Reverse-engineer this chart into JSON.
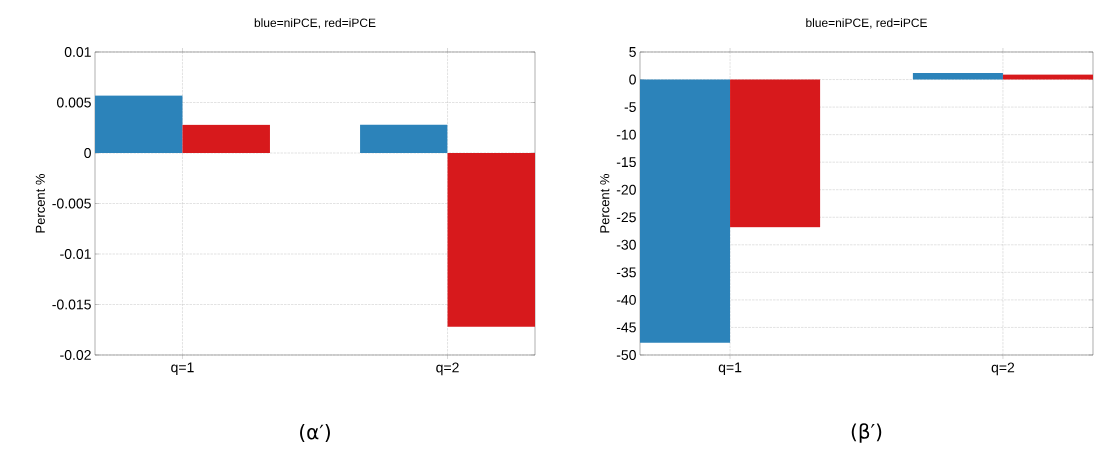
{
  "chart_data": [
    {
      "type": "bar",
      "title": "blue=niPCE, red=iPCE",
      "ylabel": "Percent %",
      "categories": [
        "q=1",
        "q=2"
      ],
      "series": [
        {
          "color": "#2c83ba",
          "values": [
            0.0057,
            0.0028
          ]
        },
        {
          "color": "#d7191c",
          "values": [
            0.0028,
            -0.0172
          ]
        }
      ],
      "ylim": [
        -0.02,
        0.01
      ],
      "yticks": [
        -0.02,
        -0.015,
        -0.01,
        -0.005,
        0,
        0.005,
        0.01
      ],
      "grid": true,
      "annotations": [
        "(α′)"
      ]
    },
    {
      "type": "bar",
      "title": "blue=niPCE, red=iPCE",
      "ylabel": "Percent %",
      "categories": [
        "q=1",
        "q=2"
      ],
      "series": [
        {
          "color": "#2c83ba",
          "values": [
            -47.8,
            1.2
          ]
        },
        {
          "color": "#d7191c",
          "values": [
            -26.8,
            0.9
          ]
        }
      ],
      "ylim": [
        -50,
        5
      ],
      "yticks": [
        -50,
        -45,
        -40,
        -35,
        -30,
        -25,
        -20,
        -15,
        -10,
        -5,
        0,
        5
      ],
      "grid": true,
      "annotations": [
        "(β′)"
      ]
    }
  ]
}
